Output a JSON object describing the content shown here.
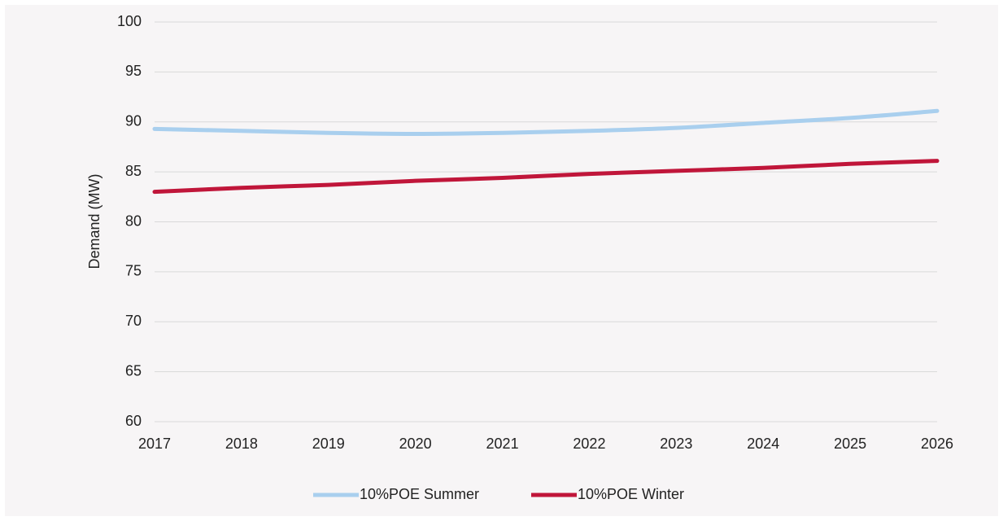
{
  "chart_data": {
    "type": "line",
    "y_label": "Demand (MW)",
    "x": [
      2017,
      2018,
      2019,
      2020,
      2021,
      2022,
      2023,
      2024,
      2025,
      2026
    ],
    "xlim": [
      2017,
      2026
    ],
    "xticks": [
      2017,
      2018,
      2019,
      2020,
      2021,
      2022,
      2023,
      2024,
      2025,
      2026
    ],
    "ylim": [
      60,
      100
    ],
    "yticks": [
      60,
      65,
      70,
      75,
      80,
      85,
      90,
      95,
      100
    ],
    "grid": true,
    "legend": "bottom",
    "series": [
      {
        "name": "10%POE Summer",
        "color": "#a9cfee",
        "values": [
          89.3,
          89.1,
          88.9,
          88.8,
          88.9,
          89.1,
          89.4,
          89.9,
          90.4,
          91.1
        ]
      },
      {
        "name": "10%POE Winter",
        "color": "#c0163a",
        "values": [
          83.0,
          83.4,
          83.7,
          84.1,
          84.4,
          84.8,
          85.1,
          85.4,
          85.8,
          86.1
        ]
      }
    ]
  }
}
